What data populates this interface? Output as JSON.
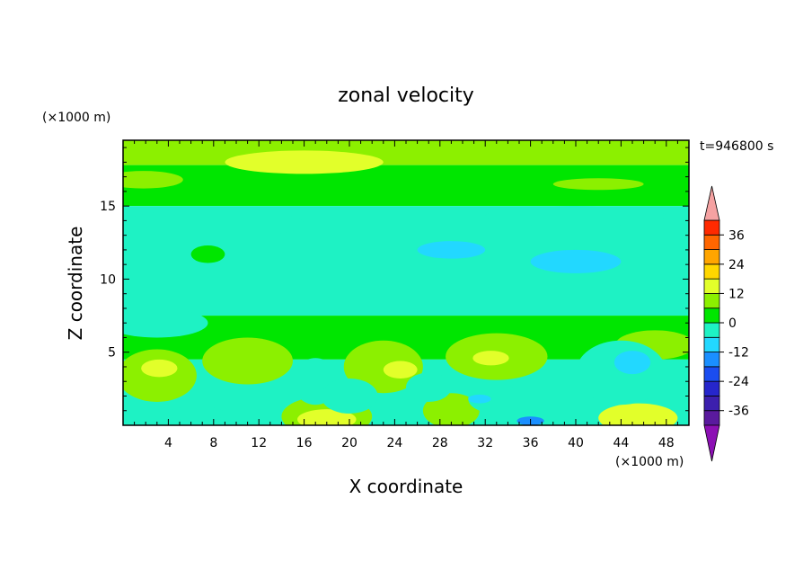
{
  "chart_data": {
    "type": "heatmap",
    "title": "zonal velocity",
    "time_label": "t=946800 s",
    "xlabel": "X coordinate",
    "ylabel": "Z coordinate",
    "x_unit": "(×1000 m)",
    "y_unit": "(×1000 m)",
    "xlim": [
      0,
      50
    ],
    "ylim": [
      0,
      19.5
    ],
    "x_ticks": [
      4,
      8,
      12,
      16,
      20,
      24,
      28,
      32,
      36,
      40,
      44,
      48
    ],
    "y_ticks": [
      5,
      10,
      15
    ],
    "colorbar": {
      "levels": [
        -42,
        -36,
        -30,
        -24,
        -18,
        -12,
        -6,
        0,
        6,
        12,
        18,
        24,
        30,
        36,
        42
      ],
      "labels": [
        36,
        24,
        12,
        0,
        -12,
        -24,
        -36
      ],
      "colors": [
        "#5a1a9e",
        "#3c1fae",
        "#2626cc",
        "#1a4df0",
        "#1a8fff",
        "#22d8ff",
        "#1ef2c4",
        "#00e600",
        "#8cf000",
        "#e2ff2a",
        "#ffd700",
        "#ffa500",
        "#ff6600",
        "#ff2a00"
      ],
      "over_color": "#f5a2a2",
      "under_color": "#8c10b4"
    },
    "bands": [
      {
        "z": [
          19.5,
          17.8
        ],
        "level": 8
      },
      {
        "z": [
          17.8,
          15.0
        ],
        "level": 7
      },
      {
        "z": [
          15.0,
          7.5
        ],
        "level": 6
      },
      {
        "z": [
          7.5,
          4.5
        ],
        "level": 7
      },
      {
        "z": [
          4.5,
          0
        ],
        "level": 6
      }
    ],
    "blobs": [
      {
        "x": 1.8,
        "z": 16.8,
        "rx": 3.5,
        "rz": 0.6,
        "level": 8
      },
      {
        "x": 16,
        "z": 18.0,
        "rx": 7,
        "rz": 0.8,
        "level": 9
      },
      {
        "x": 42,
        "z": 16.5,
        "rx": 4,
        "rz": 0.4,
        "level": 8
      },
      {
        "x": 8,
        "z": 13.8,
        "rx": 8,
        "rz": 1.0,
        "level": 6
      },
      {
        "x": 40,
        "z": 14.3,
        "rx": 8,
        "rz": 0.7,
        "level": 6
      },
      {
        "x": 7.5,
        "z": 11.7,
        "rx": 1.5,
        "rz": 0.6,
        "level": 7
      },
      {
        "x": 40,
        "z": 11.2,
        "rx": 4,
        "rz": 0.8,
        "level": 5
      },
      {
        "x": 29,
        "z": 12.0,
        "rx": 3,
        "rz": 0.6,
        "level": 5
      },
      {
        "x": 3,
        "z": 7.0,
        "rx": 4.5,
        "rz": 1.0,
        "level": 6
      },
      {
        "x": 3,
        "z": 3.4,
        "rx": 3.5,
        "rz": 1.8,
        "level": 8
      },
      {
        "x": 3.2,
        "z": 3.9,
        "rx": 1.6,
        "rz": 0.6,
        "level": 9
      },
      {
        "x": 11,
        "z": 4.4,
        "rx": 4,
        "rz": 1.6,
        "level": 8
      },
      {
        "x": 18,
        "z": 0.6,
        "rx": 4,
        "rz": 1.4,
        "level": 8
      },
      {
        "x": 18,
        "z": 0.4,
        "rx": 2.6,
        "rz": 0.7,
        "level": 9
      },
      {
        "x": 23,
        "z": 4.0,
        "rx": 3.5,
        "rz": 1.8,
        "level": 8
      },
      {
        "x": 24.5,
        "z": 3.8,
        "rx": 1.5,
        "rz": 0.6,
        "level": 9
      },
      {
        "x": 33,
        "z": 4.7,
        "rx": 4.5,
        "rz": 1.6,
        "level": 8
      },
      {
        "x": 32.5,
        "z": 4.6,
        "rx": 1.6,
        "rz": 0.5,
        "level": 9
      },
      {
        "x": 29,
        "z": 1.0,
        "rx": 2.5,
        "rz": 1.2,
        "level": 8
      },
      {
        "x": 47,
        "z": 5.5,
        "rx": 3.5,
        "rz": 1.0,
        "level": 8
      },
      {
        "x": 45.5,
        "z": 0.5,
        "rx": 3.5,
        "rz": 1.0,
        "level": 9
      },
      {
        "x": 17,
        "z": 3.0,
        "rx": 2,
        "rz": 1.6,
        "level": 6
      },
      {
        "x": 20,
        "z": 2.0,
        "rx": 2.5,
        "rz": 1.2,
        "level": 6
      },
      {
        "x": 27,
        "z": 2.6,
        "rx": 2,
        "rz": 1.0,
        "level": 6
      },
      {
        "x": 33,
        "z": 1.8,
        "rx": 2.5,
        "rz": 1.0,
        "level": 6
      },
      {
        "x": 44,
        "z": 3.6,
        "rx": 4,
        "rz": 2.2,
        "level": 6
      },
      {
        "x": 45,
        "z": 4.3,
        "rx": 1.6,
        "rz": 0.8,
        "level": 5
      },
      {
        "x": 6.5,
        "z": 0.8,
        "rx": 2.5,
        "rz": 0.5,
        "level": 6
      },
      {
        "x": 36,
        "z": 0.3,
        "rx": 1.2,
        "rz": 0.3,
        "level": 4
      },
      {
        "x": 31.5,
        "z": 1.8,
        "rx": 1,
        "rz": 0.3,
        "level": 5
      }
    ]
  }
}
